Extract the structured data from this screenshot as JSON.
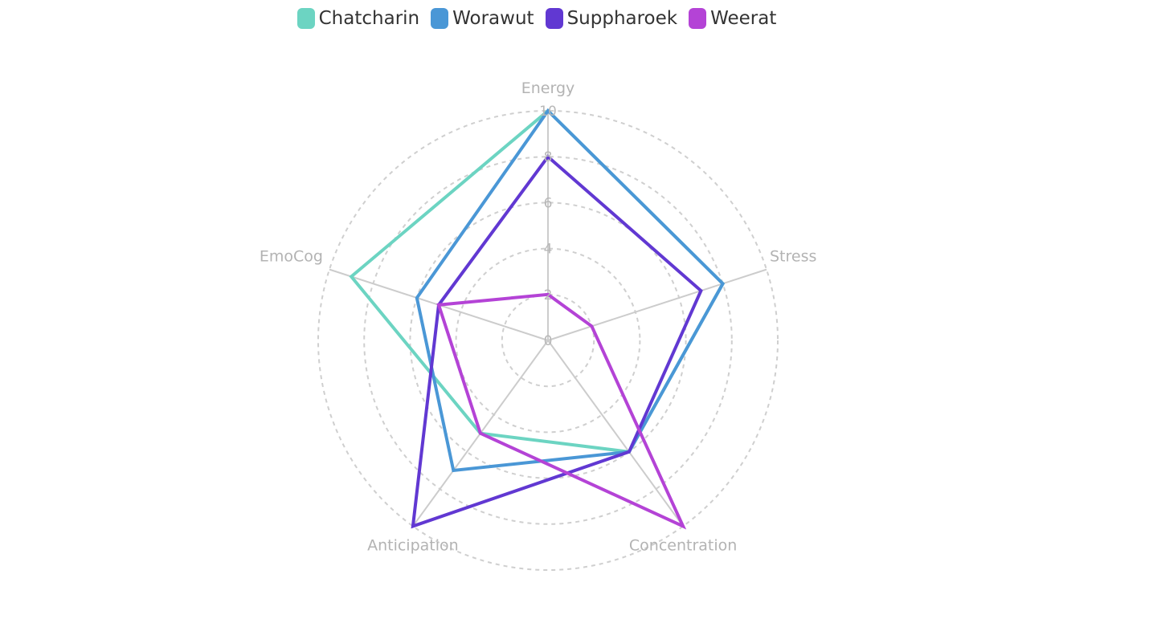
{
  "chart_data": {
    "type": "radar",
    "axes": [
      "Energy",
      "Stress",
      "Concentration",
      "Anticipation",
      "EmoCog"
    ],
    "ticks": [
      "0",
      "2",
      "4",
      "6",
      "8",
      "10"
    ],
    "rmax": 10,
    "series": [
      {
        "name": "Chatcharin",
        "color": "#6cd4c2",
        "values": [
          10,
          8,
          6,
          5,
          9
        ]
      },
      {
        "name": "Worawut",
        "color": "#4a97d6",
        "values": [
          10,
          8,
          6,
          7,
          6
        ]
      },
      {
        "name": "Suppharoek",
        "color": "#6138d2",
        "values": [
          8,
          7,
          6,
          10,
          5
        ]
      },
      {
        "name": "Weerat",
        "color": "#b443d6",
        "values": [
          2,
          2,
          10,
          5,
          5
        ]
      }
    ],
    "legend_position": "top-center",
    "grid": "dashed-circles"
  }
}
